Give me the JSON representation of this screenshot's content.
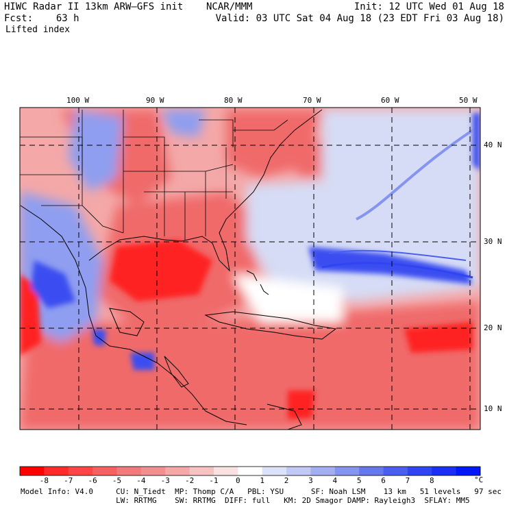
{
  "header": {
    "title": "HIWC Radar II 13km ARW–GFS init    NCAR/MMM",
    "init": "Init: 12 UTC Wed 01 Aug 18",
    "fcst": "Fcst:    63 h",
    "valid": "Valid: 03 UTC Sat 04 Aug 18 (23 EDT Fri 03 Aug 18)",
    "field": "Lifted index"
  },
  "map": {
    "lon_labels": [
      "100 W",
      "90 W",
      "80 W",
      "70 W",
      "60 W",
      "50 W"
    ],
    "lat_labels": [
      "40 N",
      "30 N",
      "20 N",
      "10 N"
    ],
    "colors": {
      "neg_strong": "#ff2020",
      "neg_mid": "#f06a6a",
      "neg_light": "#f4a8a8",
      "pos_light": "#d6dcf5",
      "pos_mid": "#8f9ef0",
      "pos_strong": "#3b4ef0",
      "contour": "#6b0000",
      "border": "#000000"
    }
  },
  "colorbar": {
    "labels": [
      "-8",
      "-7",
      "-6",
      "-5",
      "-4",
      "-3",
      "-2",
      "-1",
      "0",
      "1",
      "2",
      "3",
      "4",
      "5",
      "6",
      "7",
      "8"
    ],
    "unit": "°C",
    "colors": [
      "#ff0000",
      "#ff2a2a",
      "#ff4545",
      "#f76060",
      "#f27a7a",
      "#f29090",
      "#f4a8a8",
      "#f6c2c2",
      "#fae2e2",
      "#ffffff",
      "#dce2f8",
      "#c2c9f4",
      "#a4aff2",
      "#8594f0",
      "#6678ee",
      "#4a5eef",
      "#3045f2",
      "#1a2ef5",
      "#0018f8"
    ]
  },
  "footer": {
    "line1": "Model Info: V4.0     CU: N_Tiedt  MP: Thomp C/A   PBL: YSU      SF: Noah LSM    13 km   51 levels   97 sec",
    "line2": "                     LW: RRTMG    SW: RRTMG  DIFF: full   KM: 2D Smagor DAMP: Rayleigh3  SFLAY: MM5"
  }
}
